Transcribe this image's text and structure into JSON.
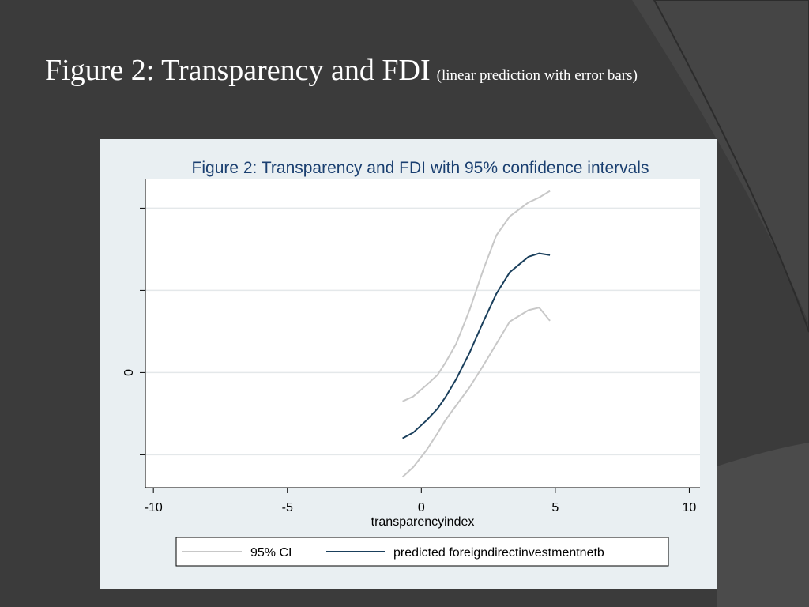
{
  "slide": {
    "title_main": "Figure 2: Transparency and FDI",
    "title_sub": "(linear prediction with error bars)"
  },
  "colors": {
    "background": "#3b3b3b",
    "panel": "#e9eff2",
    "plot_bg": "#ffffff",
    "ci_line": "#c8c8c8",
    "predicted_line": "#1a3f5c",
    "title_text": "#1a3f70"
  },
  "chart_data": {
    "type": "line",
    "title": "Figure 2: Transparency and FDI with 95% confidence intervals",
    "xlabel": "transparencyindex",
    "ylabel": "",
    "xlim": [
      -10.3,
      10.4
    ],
    "ylim": [
      -1.4,
      2.35
    ],
    "xticks": [
      -10,
      -5,
      0,
      5,
      10
    ],
    "xtick_labels": [
      "-10",
      "-5",
      "0",
      "5",
      "10"
    ],
    "yticks": [
      -1,
      0,
      1,
      2
    ],
    "ytick_labels": [
      "",
      "0",
      "",
      ""
    ],
    "grid": true,
    "legend_position": "bottom",
    "x": [
      -0.7,
      -0.3,
      0.2,
      0.6,
      0.9,
      1.3,
      1.8,
      2.3,
      2.8,
      3.3,
      4.0,
      4.4,
      4.8
    ],
    "series": [
      {
        "name": "95% CI",
        "role": "ci_upper",
        "values": [
          -0.35,
          -0.29,
          -0.15,
          -0.03,
          0.12,
          0.35,
          0.76,
          1.24,
          1.67,
          1.9,
          2.07,
          2.13,
          2.21
        ]
      },
      {
        "name": "95% CI",
        "role": "ci_lower",
        "values": [
          -1.27,
          -1.15,
          -0.94,
          -0.74,
          -0.58,
          -0.4,
          -0.18,
          0.08,
          0.35,
          0.62,
          0.76,
          0.79,
          0.63
        ]
      },
      {
        "name": "predicted foreigndirectinvestmentnetb",
        "role": "predicted",
        "values": [
          -0.8,
          -0.73,
          -0.58,
          -0.44,
          -0.3,
          -0.08,
          0.24,
          0.61,
          0.96,
          1.22,
          1.41,
          1.45,
          1.43
        ]
      }
    ],
    "legend": [
      "95% CI",
      "predicted foreigndirectinvestmentnetb"
    ]
  }
}
